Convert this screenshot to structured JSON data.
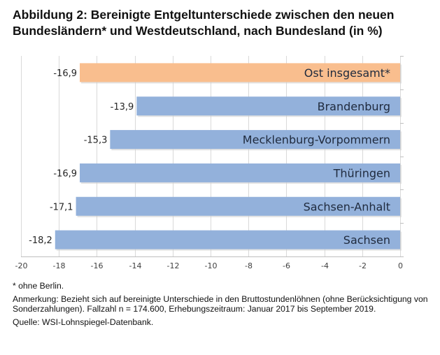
{
  "title": "Abbildung 2: Bereinigte Entgeltunterschiede zwischen den neuen Bundesländern* und Westdeutschland, nach Bundesland (in %)",
  "chart_data": {
    "type": "bar",
    "orientation": "horizontal",
    "title": "Abbildung 2: Bereinigte Entgeltunterschiede zwischen den neuen Bundesländern* und Westdeutschland, nach Bundesland (in %)",
    "xlabel": "",
    "ylabel": "",
    "xlim": [
      -20,
      0
    ],
    "xticks": [
      -20,
      -18,
      -16,
      -14,
      -12,
      -10,
      -8,
      -6,
      -4,
      -2,
      0
    ],
    "grid": true,
    "categories": [
      "Ost insgesamt*",
      "Brandenburg",
      "Mecklenburg-Vorpommern",
      "Thüringen",
      "Sachsen-Anhalt",
      "Sachsen"
    ],
    "values": [
      -16.9,
      -13.9,
      -15.3,
      -16.9,
      -17.1,
      -18.2
    ],
    "value_labels": [
      "-16,9",
      "-13,9",
      "-15,3",
      "-16,9",
      "-17,1",
      "-18,2"
    ],
    "colors": [
      "#f9be8e",
      "#93b1db",
      "#93b1db",
      "#93b1db",
      "#93b1db",
      "#93b1db"
    ],
    "highlight_category": "Ost insgesamt*"
  },
  "notes": {
    "footnote": "* ohne Berlin.",
    "remark": "Anmerkung: Bezieht sich auf bereinigte Unterschiede in den Bruttostundenlöhnen (ohne Berücksichtigung von Sonderzahlungen). Fallzahl n = 174.600, Erhebungszeitraum: Januar 2017 bis September 2019.",
    "source": "Quelle: WSI-Lohnspiegel-Datenbank."
  }
}
